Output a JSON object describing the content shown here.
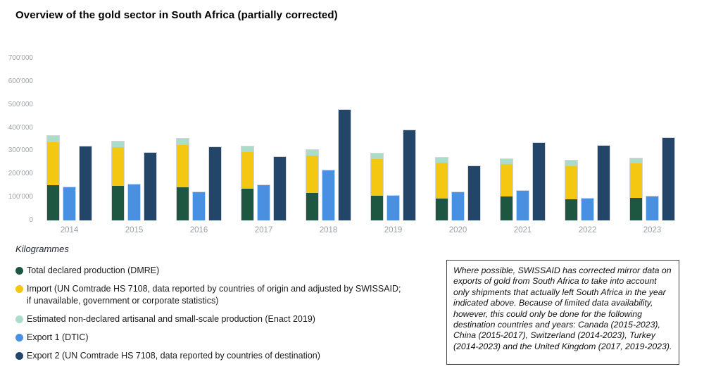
{
  "title": "Overview of the gold sector in South Africa (partially corrected)",
  "colors": {
    "production": "#1d5742",
    "import": "#f3c712",
    "artisanal": "#aadcc9",
    "export1": "#4a90e2",
    "export2": "#224569",
    "axis_text": "#a0a5ab",
    "bar_border": "#d3d6db"
  },
  "y_axis": {
    "ticks": [
      {
        "label": "700'000",
        "value": 700000
      },
      {
        "label": "600'000",
        "value": 600000
      },
      {
        "label": "500'000",
        "value": 500000
      },
      {
        "label": "400'000",
        "value": 400000
      },
      {
        "label": "300'000",
        "value": 300000
      },
      {
        "label": "200'000",
        "value": 200000
      },
      {
        "label": "100'000",
        "value": 100000
      },
      {
        "label": "0",
        "value": 0
      }
    ]
  },
  "chart_data": {
    "type": "bar",
    "title": "Overview of the gold sector in South Africa (partially corrected)",
    "unit": "Kilogrammes",
    "ylim": [
      0,
      700000
    ],
    "grid": false,
    "legend_position": "bottom-left",
    "categories": [
      "2014",
      "2015",
      "2016",
      "2017",
      "2018",
      "2019",
      "2020",
      "2021",
      "2022",
      "2023"
    ],
    "stacked_bar_series": [
      "production",
      "import",
      "artisanal"
    ],
    "separate_bar_series": [
      "export1",
      "export2"
    ],
    "series": [
      {
        "key": "production",
        "name": "Total declared production (DMRE)",
        "values": [
          152000,
          150000,
          143000,
          137000,
          119000,
          106000,
          94000,
          103000,
          91000,
          97000
        ]
      },
      {
        "key": "import",
        "name": "Import (UN Comtrade HS 7108, data reported by countries of origin and adjusted by SWISSAID; if unavailable, government or corporate statistics)",
        "values": [
          186000,
          167000,
          183000,
          158000,
          161000,
          158000,
          156000,
          140000,
          143000,
          149000
        ]
      },
      {
        "key": "artisanal",
        "name": "Estimated non-declared artisanal and small-scale production (Enact 2019)",
        "values": [
          27000,
          24000,
          27000,
          25000,
          24000,
          25000,
          21000,
          22000,
          25000,
          22000
        ]
      },
      {
        "key": "export1",
        "name": "Export 1 (DTIC)",
        "values": [
          143000,
          155000,
          122000,
          152000,
          216000,
          108000,
          122000,
          128000,
          94000,
          103000
        ]
      },
      {
        "key": "export2",
        "name": "Export 2 (UN Comtrade HS 7108, data reported by countries of destination)",
        "values": [
          321000,
          292000,
          317000,
          274000,
          478000,
          390000,
          234000,
          335000,
          323000,
          356000
        ]
      }
    ]
  },
  "legend": {
    "title": "Kilogrammes",
    "items": [
      {
        "color_key": "production",
        "lines": [
          "Total declared production (DMRE)"
        ]
      },
      {
        "color_key": "import",
        "lines": [
          "Import (UN Comtrade HS 7108, data reported by countries of origin and adjusted by SWISSAID;",
          "if unavailable, government or corporate statistics)"
        ]
      },
      {
        "color_key": "artisanal",
        "lines": [
          "Estimated non-declared artisanal and small-scale production (Enact 2019)"
        ]
      },
      {
        "color_key": "export1",
        "lines": [
          "Export 1 (DTIC)"
        ]
      },
      {
        "color_key": "export2",
        "lines": [
          "Export 2 (UN Comtrade HS 7108, data reported by countries of destination)"
        ]
      }
    ]
  },
  "note": {
    "lines": [
      "Where possible, SWISSAID has corrected mirror data on",
      "exports of gold from South Africa to take into account",
      "only shipments that actually left South Africa in the year",
      "indicated above. Because of limited data availability,",
      "however, this could only be done for the following",
      "destination countries and years: Canada (2015-2023),",
      "China (2015-2017), Switzerland (2014-2023), Turkey",
      "(2014-2023) and the United Kingdom (2017, 2019-2023)."
    ]
  }
}
